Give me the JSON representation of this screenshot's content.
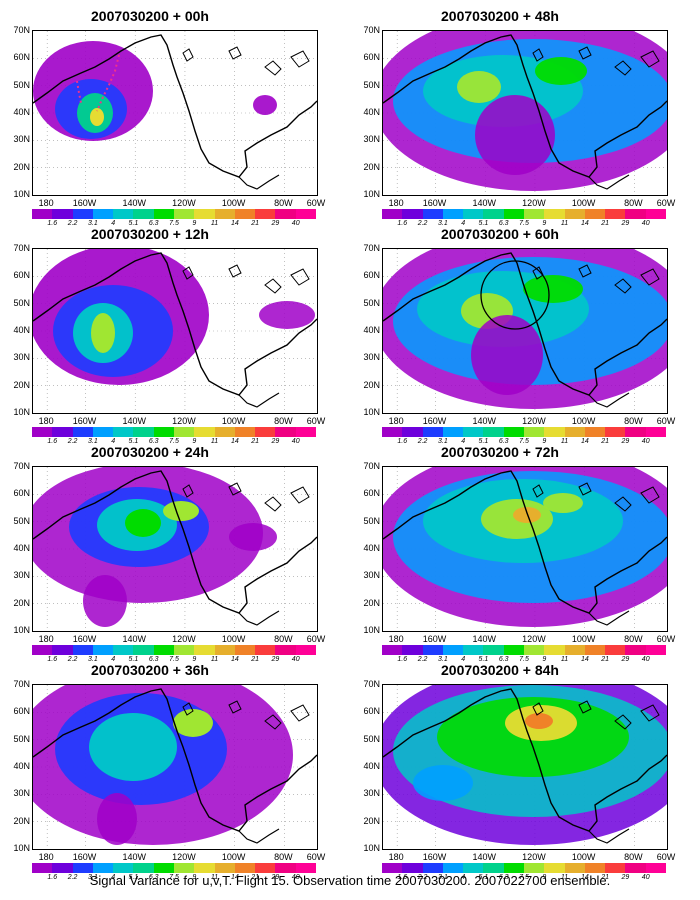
{
  "panels": [
    {
      "title": "2007030200 + 00h"
    },
    {
      "title": "2007030200 + 48h"
    },
    {
      "title": "2007030200 + 12h"
    },
    {
      "title": "2007030200 + 60h"
    },
    {
      "title": "2007030200 + 24h"
    },
    {
      "title": "2007030200 + 72h"
    },
    {
      "title": "2007030200 + 36h"
    },
    {
      "title": "2007030200 + 84h"
    }
  ],
  "lat_labels": [
    "70N",
    "60N",
    "50N",
    "40N",
    "30N",
    "20N",
    "10N"
  ],
  "lon_labels": [
    "180",
    "160W",
    "140W",
    "120W",
    "100W",
    "80W",
    "60W"
  ],
  "colorbar": {
    "ticks": [
      "1.6",
      "2.2",
      "3.1",
      "4",
      "5.1",
      "6.3",
      "7.5",
      "9",
      "11",
      "14",
      "21",
      "29",
      "40"
    ],
    "colors": [
      "#a000c8",
      "#6e00dc",
      "#1e3cff",
      "#00a0ff",
      "#00c8c8",
      "#00d28c",
      "#00dc00",
      "#a0e632",
      "#e6dc32",
      "#e6af2d",
      "#f08228",
      "#fa3c3c",
      "#f00082",
      "#ff0096"
    ]
  },
  "footer": "Signal Variance for u,v,T. Flight 15. Observation time 2007030200. 2007022700 ensemble."
}
